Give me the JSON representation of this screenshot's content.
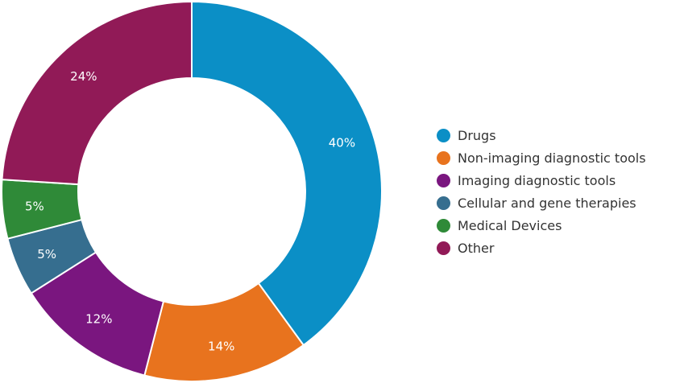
{
  "chart_data": {
    "type": "pie",
    "variant": "donut",
    "legend_position": "right",
    "categories": [
      "Drugs",
      "Non-imaging diagnostic tools",
      "Imaging diagnostic tools",
      "Cellular and gene therapies",
      "Medical Devices",
      "Other"
    ],
    "values": [
      40,
      14,
      12,
      5,
      5,
      24
    ],
    "value_labels": [
      "40%",
      "14%",
      "12%",
      "5%",
      "5%",
      "24%"
    ],
    "colors": [
      "#0b8fc6",
      "#e8731e",
      "#7a167f",
      "#366e8f",
      "#2f8a38",
      "#911a57"
    ]
  }
}
